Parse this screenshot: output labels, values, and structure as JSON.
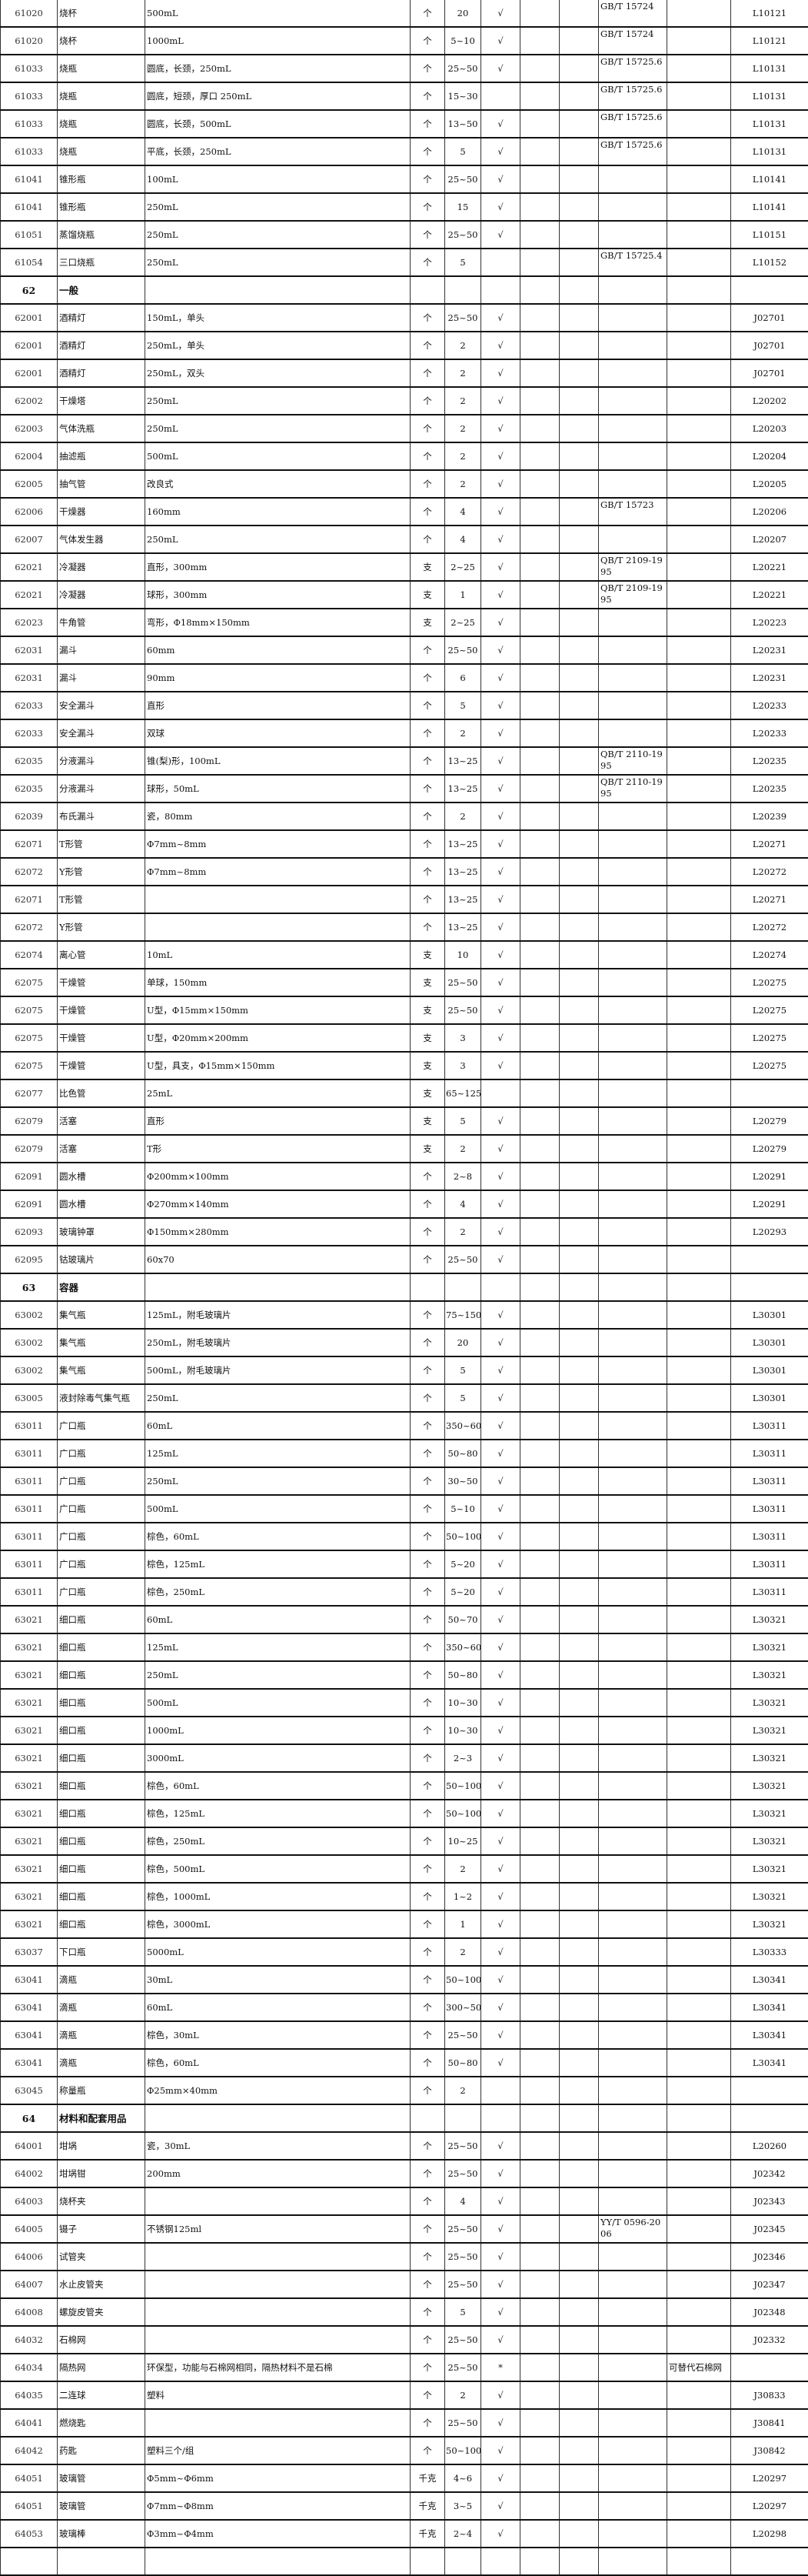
{
  "table": {
    "rows": [
      [
        "61020",
        "烧杯",
        "500mL",
        "个",
        "20",
        "√",
        "",
        "",
        "GB/T 15724",
        "",
        "L10121"
      ],
      [
        "61020",
        "烧杯",
        "1000mL",
        "个",
        "5~10",
        "√",
        "",
        "",
        "GB/T 15724",
        "",
        "L10121"
      ],
      [
        "61033",
        "烧瓶",
        "圆底，长颈，250mL",
        "个",
        "25~50",
        "√",
        "",
        "",
        "GB/T 15725.6",
        "",
        "L10131"
      ],
      [
        "61033",
        "烧瓶",
        "圆底，短颈，厚口 250mL",
        "个",
        "15~30",
        "",
        "",
        "",
        "GB/T 15725.6",
        "",
        "L10131"
      ],
      [
        "61033",
        "烧瓶",
        "圆底，长颈，500mL",
        "个",
        "13~50",
        "√",
        "",
        "",
        "GB/T 15725.6",
        "",
        "L10131"
      ],
      [
        "61033",
        "烧瓶",
        "平底，长颈，250mL",
        "个",
        "5",
        "√",
        "",
        "",
        "GB/T 15725.6",
        "",
        "L10131"
      ],
      [
        "61041",
        "锥形瓶",
        "100mL",
        "个",
        "25~50",
        "√",
        "",
        "",
        "",
        "",
        "L10141"
      ],
      [
        "61041",
        "锥形瓶",
        "250mL",
        "个",
        "15",
        "√",
        "",
        "",
        "",
        "",
        "L10141"
      ],
      [
        "61051",
        "蒸馏烧瓶",
        "250mL",
        "个",
        "25~50",
        "√",
        "",
        "",
        "",
        "",
        "L10151"
      ],
      [
        "61054",
        "三口烧瓶",
        "250mL",
        "个",
        "5",
        "",
        "",
        "",
        "GB/T 15725.4",
        "",
        "L10152"
      ],
      [
        "62",
        "一般",
        "",
        "",
        "",
        "",
        "",
        "",
        "",
        "",
        ""
      ],
      [
        "62001",
        "酒精灯",
        "150mL，单头",
        "个",
        "25~50",
        "√",
        "",
        "",
        "",
        "",
        "J02701"
      ],
      [
        "62001",
        "酒精灯",
        "250mL，单头",
        "个",
        "2",
        "√",
        "",
        "",
        "",
        "",
        "J02701"
      ],
      [
        "62001",
        "酒精灯",
        "250mL，双头",
        "个",
        "2",
        "√",
        "",
        "",
        "",
        "",
        "J02701"
      ],
      [
        "62002",
        "干燥塔",
        "250mL",
        "个",
        "2",
        "√",
        "",
        "",
        "",
        "",
        "L20202"
      ],
      [
        "62003",
        "气体洗瓶",
        "250mL",
        "个",
        "2",
        "√",
        "",
        "",
        "",
        "",
        "L20203"
      ],
      [
        "62004",
        "抽滤瓶",
        "500mL",
        "个",
        "2",
        "√",
        "",
        "",
        "",
        "",
        "L20204"
      ],
      [
        "62005",
        "抽气管",
        "改良式",
        "个",
        "2",
        "√",
        "",
        "",
        "",
        "",
        "L20205"
      ],
      [
        "62006",
        "干燥器",
        "160mm",
        "个",
        "4",
        "√",
        "",
        "",
        "GB/T 15723",
        "",
        "L20206"
      ],
      [
        "62007",
        "气体发生器",
        "250mL",
        "个",
        "4",
        "√",
        "",
        "",
        "",
        "",
        "L20207"
      ],
      [
        "62021",
        "冷凝器",
        "直形，300mm",
        "支",
        "2~25",
        "√",
        "",
        "",
        "QB/T 2109-1995",
        "",
        "L20221"
      ],
      [
        "62021",
        "冷凝器",
        "球形，300mm",
        "支",
        "1",
        "√",
        "",
        "",
        "QB/T 2109-1995",
        "",
        "L20221"
      ],
      [
        "62023",
        "牛角管",
        "弯形，Φ18mm×150mm",
        "支",
        "2~25",
        "√",
        "",
        "",
        "",
        "",
        "L20223"
      ],
      [
        "62031",
        "漏斗",
        "60mm",
        "个",
        "25~50",
        "√",
        "",
        "",
        "",
        "",
        "L20231"
      ],
      [
        "62031",
        "漏斗",
        "90mm",
        "个",
        "6",
        "√",
        "",
        "",
        "",
        "",
        "L20231"
      ],
      [
        "62033",
        "安全漏斗",
        "直形",
        "个",
        "5",
        "√",
        "",
        "",
        "",
        "",
        "L20233"
      ],
      [
        "62033",
        "安全漏斗",
        "双球",
        "个",
        "2",
        "√",
        "",
        "",
        "",
        "",
        "L20233"
      ],
      [
        "62035",
        "分液漏斗",
        "锥(梨)形，100mL",
        "个",
        "13~25",
        "√",
        "",
        "",
        "QB/T 2110-1995",
        "",
        "L20235"
      ],
      [
        "62035",
        "分液漏斗",
        "球形，50mL",
        "个",
        "13~25",
        "√",
        "",
        "",
        "QB/T 2110-1995",
        "",
        "L20235"
      ],
      [
        "62039",
        "布氏漏斗",
        "瓷，80mm",
        "个",
        "2",
        "√",
        "",
        "",
        "",
        "",
        "L20239"
      ],
      [
        "62071",
        "T形管",
        "Φ7mm~8mm",
        "个",
        "13~25",
        "√",
        "",
        "",
        "",
        "",
        "L20271"
      ],
      [
        "62072",
        "Y形管",
        "Φ7mm~8mm",
        "个",
        "13~25",
        "√",
        "",
        "",
        "",
        "",
        "L20272"
      ],
      [
        "62071",
        "T形管",
        "",
        "个",
        "13~25",
        "√",
        "",
        "",
        "",
        "",
        "L20271"
      ],
      [
        "62072",
        "Y形管",
        "",
        "个",
        "13~25",
        "√",
        "",
        "",
        "",
        "",
        "L20272"
      ],
      [
        "62074",
        "离心管",
        "10mL",
        "支",
        "10",
        "√",
        "",
        "",
        "",
        "",
        "L20274"
      ],
      [
        "62075",
        "干燥管",
        "单球，150mm",
        "支",
        "25~50",
        "√",
        "",
        "",
        "",
        "",
        "L20275"
      ],
      [
        "62075",
        "干燥管",
        "U型，Φ15mm×150mm",
        "支",
        "25~50",
        "√",
        "",
        "",
        "",
        "",
        "L20275"
      ],
      [
        "62075",
        "干燥管",
        "U型，Φ20mm×200mm",
        "支",
        "3",
        "√",
        "",
        "",
        "",
        "",
        "L20275"
      ],
      [
        "62075",
        "干燥管",
        "U型，具支，Φ15mm×150mm",
        "支",
        "3",
        "√",
        "",
        "",
        "",
        "",
        "L20275"
      ],
      [
        "62077",
        "比色管",
        "25mL",
        "支",
        "65~125",
        "",
        "",
        "",
        "",
        "",
        ""
      ],
      [
        "62079",
        "活塞",
        "直形",
        "支",
        "5",
        "√",
        "",
        "",
        "",
        "",
        "L20279"
      ],
      [
        "62079",
        "活塞",
        "T形",
        "支",
        "2",
        "√",
        "",
        "",
        "",
        "",
        "L20279"
      ],
      [
        "62091",
        "圆水槽",
        "Φ200mm×100mm",
        "个",
        "2~8",
        "√",
        "",
        "",
        "",
        "",
        "L20291"
      ],
      [
        "62091",
        "圆水槽",
        "Φ270mm×140mm",
        "个",
        "4",
        "√",
        "",
        "",
        "",
        "",
        "L20291"
      ],
      [
        "62093",
        "玻璃钟罩",
        "Φ150mm×280mm",
        "个",
        "2",
        "√",
        "",
        "",
        "",
        "",
        "L20293"
      ],
      [
        "62095",
        "钴玻璃片",
        "60x70",
        "个",
        "25~50",
        "√",
        "",
        "",
        "",
        "",
        ""
      ],
      [
        "63",
        "容器",
        "",
        "",
        "",
        "",
        "",
        "",
        "",
        "",
        ""
      ],
      [
        "63002",
        "集气瓶",
        "125mL，附毛玻璃片",
        "个",
        "75~150",
        "√",
        "",
        "",
        "",
        "",
        "L30301"
      ],
      [
        "63002",
        "集气瓶",
        "250mL，附毛玻璃片",
        "个",
        "20",
        "√",
        "",
        "",
        "",
        "",
        "L30301"
      ],
      [
        "63002",
        "集气瓶",
        "500mL，附毛玻璃片",
        "个",
        "5",
        "√",
        "",
        "",
        "",
        "",
        "L30301"
      ],
      [
        "63005",
        "液封除毒气集气瓶",
        "250mL",
        "个",
        "5",
        "√",
        "",
        "",
        "",
        "",
        "L30301"
      ],
      [
        "63011",
        "广口瓶",
        "60mL",
        "个",
        "350~600",
        "√",
        "",
        "",
        "",
        "",
        "L30311"
      ],
      [
        "63011",
        "广口瓶",
        "125mL",
        "个",
        "50~80",
        "√",
        "",
        "",
        "",
        "",
        "L30311"
      ],
      [
        "63011",
        "广口瓶",
        "250mL",
        "个",
        "30~50",
        "√",
        "",
        "",
        "",
        "",
        "L30311"
      ],
      [
        "63011",
        "广口瓶",
        "500mL",
        "个",
        "5~10",
        "√",
        "",
        "",
        "",
        "",
        "L30311"
      ],
      [
        "63011",
        "广口瓶",
        "棕色，60mL",
        "个",
        "50~100",
        "√",
        "",
        "",
        "",
        "",
        "L30311"
      ],
      [
        "63011",
        "广口瓶",
        "棕色，125mL",
        "个",
        "5~20",
        "√",
        "",
        "",
        "",
        "",
        "L30311"
      ],
      [
        "63011",
        "广口瓶",
        "棕色，250mL",
        "个",
        "5~20",
        "√",
        "",
        "",
        "",
        "",
        "L30311"
      ],
      [
        "63021",
        "细口瓶",
        "60mL",
        "个",
        "50~70",
        "√",
        "",
        "",
        "",
        "",
        "L30321"
      ],
      [
        "63021",
        "细口瓶",
        "125mL",
        "个",
        "350~600",
        "√",
        "",
        "",
        "",
        "",
        "L30321"
      ],
      [
        "63021",
        "细口瓶",
        "250mL",
        "个",
        "50~80",
        "√",
        "",
        "",
        "",
        "",
        "L30321"
      ],
      [
        "63021",
        "细口瓶",
        "500mL",
        "个",
        "10~30",
        "√",
        "",
        "",
        "",
        "",
        "L30321"
      ],
      [
        "63021",
        "细口瓶",
        "1000mL",
        "个",
        "10~30",
        "√",
        "",
        "",
        "",
        "",
        "L30321"
      ],
      [
        "63021",
        "细口瓶",
        "3000mL",
        "个",
        "2~3",
        "√",
        "",
        "",
        "",
        "",
        "L30321"
      ],
      [
        "63021",
        "细口瓶",
        "棕色，60mL",
        "个",
        "50~100",
        "√",
        "",
        "",
        "",
        "",
        "L30321"
      ],
      [
        "63021",
        "细口瓶",
        "棕色，125mL",
        "个",
        "50~100",
        "√",
        "",
        "",
        "",
        "",
        "L30321"
      ],
      [
        "63021",
        "细口瓶",
        "棕色，250mL",
        "个",
        "10~25",
        "√",
        "",
        "",
        "",
        "",
        "L30321"
      ],
      [
        "63021",
        "细口瓶",
        "棕色，500mL",
        "个",
        "2",
        "√",
        "",
        "",
        "",
        "",
        "L30321"
      ],
      [
        "63021",
        "细口瓶",
        "棕色，1000mL",
        "个",
        "1~2",
        "√",
        "",
        "",
        "",
        "",
        "L30321"
      ],
      [
        "63021",
        "细口瓶",
        "棕色，3000mL",
        "个",
        "1",
        "√",
        "",
        "",
        "",
        "",
        "L30321"
      ],
      [
        "63037",
        "下口瓶",
        "5000mL",
        "个",
        "2",
        "√",
        "",
        "",
        "",
        "",
        "L30333"
      ],
      [
        "63041",
        "滴瓶",
        "30mL",
        "个",
        "50~100",
        "√",
        "",
        "",
        "",
        "",
        "L30341"
      ],
      [
        "63041",
        "滴瓶",
        "60mL",
        "个",
        "300~500",
        "√",
        "",
        "",
        "",
        "",
        "L30341"
      ],
      [
        "63041",
        "滴瓶",
        "棕色，30mL",
        "个",
        "25~50",
        "√",
        "",
        "",
        "",
        "",
        "L30341"
      ],
      [
        "63041",
        "滴瓶",
        "棕色，60mL",
        "个",
        "50~80",
        "√",
        "",
        "",
        "",
        "",
        "L30341"
      ],
      [
        "63045",
        "称量瓶",
        "Φ25mm×40mm",
        "个",
        "2",
        "",
        "",
        "",
        "",
        "",
        ""
      ],
      [
        "64",
        "材料和配套用品",
        "",
        "",
        "",
        "",
        "",
        "",
        "",
        "",
        ""
      ],
      [
        "64001",
        "坩埚",
        "瓷，30mL",
        "个",
        "25~50",
        "√",
        "",
        "",
        "",
        "",
        "L20260"
      ],
      [
        "64002",
        "坩埚钳",
        "200mm",
        "个",
        "25~50",
        "√",
        "",
        "",
        "",
        "",
        "J02342"
      ],
      [
        "64003",
        "烧杯夹",
        "",
        "个",
        "4",
        "√",
        "",
        "",
        "",
        "",
        "J02343"
      ],
      [
        "64005",
        "镊子",
        "不锈钢125ml",
        "个",
        "25~50",
        "√",
        "",
        "",
        "YY/T 0596-2006",
        "",
        "J02345"
      ],
      [
        "64006",
        "试管夹",
        "",
        "个",
        "25~50",
        "√",
        "",
        "",
        "",
        "",
        "J02346"
      ],
      [
        "64007",
        "水止皮管夹",
        "",
        "个",
        "25~50",
        "√",
        "",
        "",
        "",
        "",
        "J02347"
      ],
      [
        "64008",
        "螺旋皮管夹",
        "",
        "个",
        "5",
        "√",
        "",
        "",
        "",
        "",
        "J02348"
      ],
      [
        "64032",
        "石棉网",
        "",
        "个",
        "25~50",
        "√",
        "",
        "",
        "",
        "",
        "J02332"
      ],
      [
        "64034",
        "隔热网",
        "环保型，功能与石棉网相同，隔热材料不是石棉",
        "个",
        "25~50",
        "*",
        "",
        "",
        "",
        "可替代石棉网",
        ""
      ],
      [
        "64035",
        "二连球",
        "塑料",
        "个",
        "2",
        "√",
        "",
        "",
        "",
        "",
        "J30833"
      ],
      [
        "64041",
        "燃烧匙",
        "",
        "个",
        "25~50",
        "√",
        "",
        "",
        "",
        "",
        "J30841"
      ],
      [
        "64042",
        "药匙",
        "塑料三个/组",
        "个",
        "50~100",
        "√",
        "",
        "",
        "",
        "",
        "J30842"
      ],
      [
        "64051",
        "玻璃管",
        "Φ5mm~Φ6mm",
        "千克",
        "4~6",
        "√",
        "",
        "",
        "",
        "",
        "L20297"
      ],
      [
        "64051",
        "玻璃管",
        "Φ7mm~Φ8mm",
        "千克",
        "3~5",
        "√",
        "",
        "",
        "",
        "",
        "L20297"
      ],
      [
        "64053",
        "玻璃棒",
        "Φ3mm~Φ4mm",
        "千克",
        "2~4",
        "√",
        "",
        "",
        "",
        "",
        "L20298"
      ],
      [
        "",
        "",
        "",
        "",
        "",
        "",
        "",
        "",
        "",
        "",
        ""
      ]
    ]
  }
}
